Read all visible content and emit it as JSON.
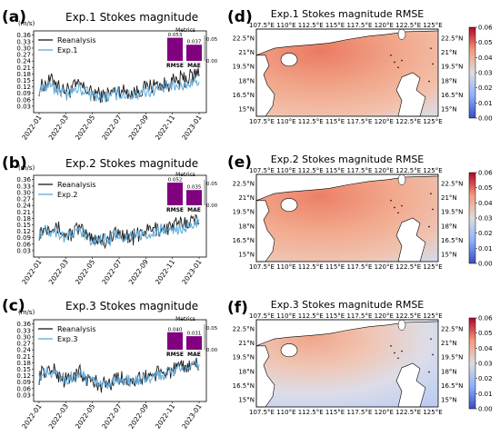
{
  "panels": [
    {
      "letter": "(a)",
      "title": "Exp.1 Stokes magnitude",
      "unit": "(m/s)",
      "legend": [
        "Reanalysis",
        "Exp.1"
      ],
      "metrics": {
        "title": "Metrics",
        "labels": [
          "RMSE",
          "MAE"
        ],
        "values": [
          0.053,
          0.037
        ],
        "value_labels": [
          "0.053",
          "0.037"
        ],
        "axis_ticks": [
          "0.05",
          "0.00"
        ]
      }
    },
    {
      "letter": "(b)",
      "title": "Exp.2 Stokes magnitude",
      "unit": "(m/s)",
      "legend": [
        "Reanalysis",
        "Exp.2"
      ],
      "metrics": {
        "title": "Metrics",
        "labels": [
          "RMSE",
          "MAE"
        ],
        "values": [
          0.052,
          0.035
        ],
        "value_labels": [
          "0.052",
          "0.035"
        ],
        "axis_ticks": [
          "0.05",
          "0.00"
        ]
      }
    },
    {
      "letter": "(c)",
      "title": "Exp.3 Stokes magnitude",
      "unit": "(m/s)",
      "legend": [
        "Reanalysis",
        "Exp.3"
      ],
      "metrics": {
        "title": "Metrics",
        "labels": [
          "RMSE",
          "MAE"
        ],
        "values": [
          0.04,
          0.031
        ],
        "value_labels": [
          "0.040",
          "0.031"
        ],
        "axis_ticks": [
          "0.05",
          "0.00"
        ]
      }
    },
    {
      "letter": "(d)",
      "title": "Exp.1 Stokes magnitude RMSE"
    },
    {
      "letter": "(e)",
      "title": "Exp.2 Stokes magnitude RMSE"
    },
    {
      "letter": "(f)",
      "title": "Exp.3 Stokes magnitude RMSE"
    }
  ],
  "chart_data": [
    {
      "type": "line",
      "panel": "(a)",
      "title": "Exp.1 Stokes magnitude",
      "ylabel": "(m/s)",
      "ylim": [
        0,
        0.38
      ],
      "y_ticks": [
        "0.36",
        "0.33",
        "0.30",
        "0.27",
        "0.24",
        "0.21",
        "0.18",
        "0.15",
        "0.12",
        "0.09",
        "0.06",
        "0.03"
      ],
      "x_ticks": [
        "2022-01",
        "2022-03",
        "2022-05",
        "2022-07",
        "2022-09",
        "2022-11",
        "2023-01"
      ],
      "xlim": [
        "2022-01",
        "2023-01"
      ],
      "colors": {
        "Reanalysis": "#1a1a1a",
        "Exp.1": "#5fa8d8"
      },
      "x": [
        "2022-01",
        "2022-02",
        "2022-03",
        "2022-04",
        "2022-05",
        "2022-06",
        "2022-07",
        "2022-08",
        "2022-09",
        "2022-10",
        "2022-11",
        "2022-12",
        "2023-01"
      ],
      "series": [
        {
          "name": "Reanalysis",
          "values": [
            0.12,
            0.15,
            0.1,
            0.13,
            0.09,
            0.08,
            0.11,
            0.09,
            0.12,
            0.13,
            0.14,
            0.16,
            0.18
          ]
        },
        {
          "name": "Exp.1",
          "values": [
            0.11,
            0.12,
            0.09,
            0.11,
            0.08,
            0.07,
            0.09,
            0.08,
            0.1,
            0.11,
            0.12,
            0.13,
            0.15
          ]
        }
      ],
      "inset_bar": {
        "title": "Metrics",
        "categories": [
          "RMSE",
          "MAE"
        ],
        "values": [
          0.053,
          0.037
        ],
        "ylim": [
          0,
          0.05
        ],
        "color": "#800080"
      }
    },
    {
      "type": "line",
      "panel": "(b)",
      "title": "Exp.2 Stokes magnitude",
      "ylabel": "(m/s)",
      "ylim": [
        0,
        0.38
      ],
      "y_ticks": [
        "0.36",
        "0.33",
        "0.30",
        "0.27",
        "0.24",
        "0.21",
        "0.18",
        "0.15",
        "0.12",
        "0.09",
        "0.06",
        "0.03"
      ],
      "x_ticks": [
        "2022-01",
        "2022-03",
        "2022-05",
        "2022-07",
        "2022-09",
        "2022-11",
        "2023-01"
      ],
      "xlim": [
        "2022-01",
        "2023-01"
      ],
      "colors": {
        "Reanalysis": "#1a1a1a",
        "Exp.2": "#5fa8d8"
      },
      "x": [
        "2022-01",
        "2022-02",
        "2022-03",
        "2022-04",
        "2022-05",
        "2022-06",
        "2022-07",
        "2022-08",
        "2022-09",
        "2022-10",
        "2022-11",
        "2022-12",
        "2023-01"
      ],
      "series": [
        {
          "name": "Reanalysis",
          "values": [
            0.12,
            0.15,
            0.1,
            0.13,
            0.09,
            0.08,
            0.11,
            0.09,
            0.12,
            0.13,
            0.14,
            0.16,
            0.18
          ]
        },
        {
          "name": "Exp.2",
          "values": [
            0.11,
            0.13,
            0.09,
            0.12,
            0.08,
            0.08,
            0.1,
            0.09,
            0.11,
            0.12,
            0.13,
            0.14,
            0.16
          ]
        }
      ],
      "inset_bar": {
        "title": "Metrics",
        "categories": [
          "RMSE",
          "MAE"
        ],
        "values": [
          0.052,
          0.035
        ],
        "ylim": [
          0,
          0.05
        ],
        "color": "#800080"
      }
    },
    {
      "type": "line",
      "panel": "(c)",
      "title": "Exp.3 Stokes magnitude",
      "ylabel": "(m/s)",
      "ylim": [
        0,
        0.38
      ],
      "y_ticks": [
        "0.36",
        "0.33",
        "0.30",
        "0.27",
        "0.24",
        "0.21",
        "0.18",
        "0.15",
        "0.12",
        "0.09",
        "0.06",
        "0.03"
      ],
      "x_ticks": [
        "2022-01",
        "2022-03",
        "2022-05",
        "2022-07",
        "2022-09",
        "2022-11",
        "2023-01"
      ],
      "xlim": [
        "2022-01",
        "2023-01"
      ],
      "colors": {
        "Reanalysis": "#1a1a1a",
        "Exp.3": "#5fa8d8"
      },
      "x": [
        "2022-01",
        "2022-02",
        "2022-03",
        "2022-04",
        "2022-05",
        "2022-06",
        "2022-07",
        "2022-08",
        "2022-09",
        "2022-10",
        "2022-11",
        "2022-12",
        "2023-01"
      ],
      "series": [
        {
          "name": "Reanalysis",
          "values": [
            0.12,
            0.15,
            0.1,
            0.13,
            0.09,
            0.08,
            0.11,
            0.09,
            0.12,
            0.13,
            0.14,
            0.16,
            0.18
          ]
        },
        {
          "name": "Exp.3",
          "values": [
            0.12,
            0.14,
            0.1,
            0.12,
            0.09,
            0.08,
            0.1,
            0.09,
            0.11,
            0.12,
            0.14,
            0.15,
            0.17
          ]
        }
      ],
      "inset_bar": {
        "title": "Metrics",
        "categories": [
          "RMSE",
          "MAE"
        ],
        "values": [
          0.04,
          0.031
        ],
        "ylim": [
          0,
          0.05
        ],
        "color": "#800080"
      }
    },
    {
      "type": "heatmap",
      "panel": "(d)",
      "title": "Exp.1 Stokes magnitude RMSE",
      "x_ticks": [
        "107.5°E",
        "110°E",
        "112.5°E",
        "115°E",
        "117.5°E",
        "120°E",
        "122.5°E",
        "125°E"
      ],
      "y_ticks": [
        "22.5°N",
        "21°N",
        "19.5°N",
        "18°N",
        "16.5°N",
        "15°N"
      ],
      "colorbar": {
        "ticks": [
          "0.06",
          "0.05",
          "0.04",
          "0.03",
          "0.02",
          "0.01",
          "0.00"
        ],
        "range": [
          0,
          0.06
        ],
        "colormap": "coolwarm"
      },
      "dominant_value": 0.04
    },
    {
      "type": "heatmap",
      "panel": "(e)",
      "title": "Exp.2 Stokes magnitude RMSE",
      "x_ticks": [
        "107.5°E",
        "110°E",
        "112.5°E",
        "115°E",
        "117.5°E",
        "120°E",
        "122.5°E",
        "125°E"
      ],
      "y_ticks": [
        "22.5°N",
        "21°N",
        "19.5°N",
        "18°N",
        "16.5°N",
        "15°N"
      ],
      "colorbar": {
        "ticks": [
          "0.06",
          "0.05",
          "0.04",
          "0.03",
          "0.02",
          "0.01",
          "0.00"
        ],
        "range": [
          0,
          0.06
        ],
        "colormap": "coolwarm"
      },
      "dominant_value": 0.04
    },
    {
      "type": "heatmap",
      "panel": "(f)",
      "title": "Exp.3 Stokes magnitude RMSE",
      "x_ticks": [
        "107.5°E",
        "110°E",
        "112.5°E",
        "115°E",
        "117.5°E",
        "120°E",
        "122.5°E",
        "125°E"
      ],
      "y_ticks": [
        "22.5°N",
        "21°N",
        "19.5°N",
        "18°N",
        "16.5°N",
        "15°N"
      ],
      "colorbar": {
        "ticks": [
          "0.06",
          "0.05",
          "0.04",
          "0.03",
          "0.02",
          "0.01",
          "0.00"
        ],
        "range": [
          0,
          0.06
        ],
        "colormap": "coolwarm"
      },
      "dominant_value": 0.025
    }
  ]
}
